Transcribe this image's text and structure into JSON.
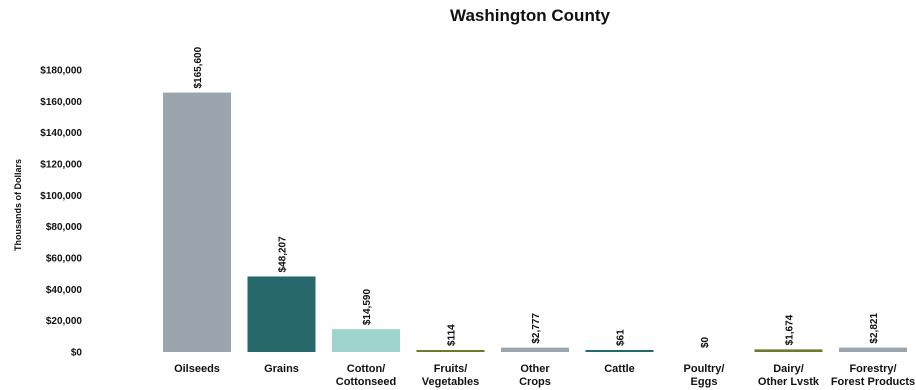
{
  "chart_data": {
    "type": "bar",
    "title": "Washington County",
    "ylabel": "Thousands of Dollars",
    "xlabel": "",
    "ylim": [
      0,
      180000
    ],
    "yticks": [
      0,
      20000,
      40000,
      60000,
      80000,
      100000,
      120000,
      140000,
      160000,
      180000
    ],
    "ytick_labels": [
      "$0",
      "$20,000",
      "$40,000",
      "$60,000",
      "$80,000",
      "$100,000",
      "$120,000",
      "$140,000",
      "$160,000",
      "$180,000"
    ],
    "grid": false,
    "categories": [
      [
        "Oilseeds"
      ],
      [
        "Grains"
      ],
      [
        "Cotton/",
        "Cottonseed"
      ],
      [
        "Fruits/",
        "Vegetables"
      ],
      [
        "Other",
        "Crops"
      ],
      [
        "Cattle"
      ],
      [
        "Poultry/",
        "Eggs"
      ],
      [
        "Dairy/",
        "Other Lvstk"
      ],
      [
        "Forestry/",
        "Forest Products"
      ]
    ],
    "values": [
      165600,
      48207,
      14590,
      114,
      2777,
      61,
      0,
      1674,
      2821
    ],
    "data_labels": [
      "$165,600",
      "$48,207",
      "$14,590",
      "$114",
      "$2,777",
      "$61",
      "$0",
      "$1,674",
      "$2,821"
    ],
    "colors": [
      "#9aa5b0",
      "#27686b",
      "#9fd3cd",
      "#6b7a2c",
      "#9aa5b0",
      "#27686b",
      "#9fd3cd",
      "#6b7a2c",
      "#9aa5b0"
    ]
  }
}
